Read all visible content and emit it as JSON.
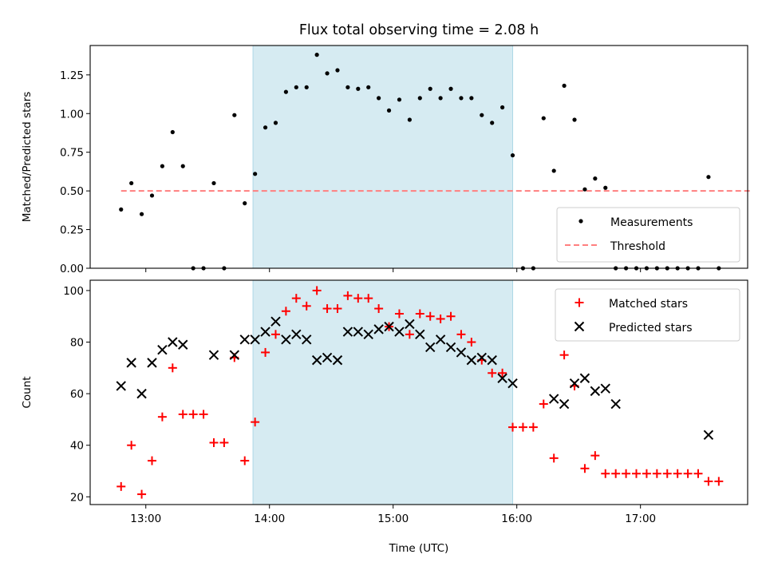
{
  "chart_data": {
    "type": "scatter",
    "title": "Flux total observing time = 2.08 h",
    "xlabel": "Time (UTC)",
    "x_ticks": [
      "13:00",
      "14:00",
      "15:00",
      "16:00",
      "17:00"
    ],
    "xlim": [
      "12:33",
      "17:52"
    ],
    "shaded_interval": [
      "13:52",
      "15:58"
    ],
    "colors": {
      "shade": "#add8e6",
      "threshold": "#ff7f7f",
      "matched": "#ff0000",
      "predicted": "#000000",
      "measurement": "#000000"
    },
    "panels": [
      {
        "ylabel": "Matched/Predicted stars",
        "ylim": [
          0,
          1.44
        ],
        "y_ticks": [
          "0.00",
          "0.25",
          "0.50",
          "0.75",
          "1.00",
          "1.25"
        ],
        "legend_position": "lower right",
        "threshold": {
          "name": "Threshold",
          "value": 0.5,
          "x": [
            "12:48",
            "17:53"
          ]
        },
        "series": [
          {
            "name": "Measurements",
            "marker": "dot",
            "x": [
              "12:48",
              "12:53",
              "12:58",
              "13:03",
              "13:08",
              "13:13",
              "13:18",
              "13:23",
              "13:28",
              "13:33",
              "13:38",
              "13:43",
              "13:48",
              "13:53",
              "13:58",
              "14:03",
              "14:08",
              "14:13",
              "14:18",
              "14:23",
              "14:28",
              "14:33",
              "14:38",
              "14:43",
              "14:48",
              "14:53",
              "14:58",
              "15:03",
              "15:08",
              "15:13",
              "15:18",
              "15:23",
              "15:28",
              "15:33",
              "15:38",
              "15:43",
              "15:48",
              "15:53",
              "15:58",
              "16:03",
              "16:08",
              "16:13",
              "16:18",
              "16:23",
              "16:28",
              "16:33",
              "16:38",
              "16:43",
              "16:48",
              "16:53",
              "16:58",
              "17:03",
              "17:08",
              "17:13",
              "17:18",
              "17:23",
              "17:28",
              "17:33",
              "17:38"
            ],
            "y": [
              0.38,
              0.55,
              0.35,
              0.47,
              0.66,
              0.88,
              0.66,
              0,
              0,
              0.55,
              0,
              0.99,
              0.42,
              0.61,
              0.91,
              0.94,
              1.14,
              1.17,
              1.17,
              1.38,
              1.26,
              1.28,
              1.17,
              1.16,
              1.17,
              1.1,
              1.02,
              1.09,
              0.96,
              1.1,
              1.16,
              1.1,
              1.16,
              1.1,
              1.1,
              0.99,
              0.94,
              1.04,
              0.73,
              0,
              0,
              0.97,
              0.63,
              1.18,
              0.96,
              0.51,
              0.58,
              0.52,
              0,
              0,
              0,
              0,
              0,
              0,
              0,
              0,
              0,
              0.59,
              0
            ]
          }
        ]
      },
      {
        "ylabel": "Count",
        "ylim": [
          17,
          104
        ],
        "y_ticks": [
          "20",
          "40",
          "60",
          "80",
          "100"
        ],
        "legend_position": "upper right",
        "series": [
          {
            "name": "Matched stars",
            "marker": "plus",
            "x": [
              "12:48",
              "12:53",
              "12:58",
              "13:03",
              "13:08",
              "13:13",
              "13:18",
              "13:23",
              "13:28",
              "13:33",
              "13:38",
              "13:43",
              "13:48",
              "13:53",
              "13:58",
              "14:03",
              "14:08",
              "14:13",
              "14:18",
              "14:23",
              "14:28",
              "14:33",
              "14:38",
              "14:43",
              "14:48",
              "14:53",
              "14:58",
              "15:03",
              "15:08",
              "15:13",
              "15:18",
              "15:23",
              "15:28",
              "15:33",
              "15:38",
              "15:43",
              "15:48",
              "15:53",
              "15:58",
              "16:03",
              "16:08",
              "16:13",
              "16:18",
              "16:23",
              "16:28",
              "16:33",
              "16:38",
              "16:43",
              "16:48",
              "16:53",
              "16:58",
              "17:03",
              "17:08",
              "17:13",
              "17:18",
              "17:23",
              "17:28",
              "17:33",
              "17:38"
            ],
            "y": [
              24,
              40,
              21,
              34,
              51,
              70,
              52,
              52,
              52,
              41,
              41,
              74,
              34,
              49,
              76,
              83,
              92,
              97,
              94,
              100,
              93,
              93,
              98,
              97,
              97,
              93,
              86,
              91,
              83,
              91,
              90,
              89,
              90,
              83,
              80,
              73,
              68,
              68,
              47,
              47,
              47,
              56,
              35,
              75,
              63,
              31,
              36,
              29,
              29,
              29,
              29,
              29,
              29,
              29,
              29,
              29,
              29,
              26,
              26
            ]
          },
          {
            "name": "Predicted stars",
            "marker": "x",
            "x": [
              "12:48",
              "12:53",
              "12:58",
              "13:03",
              "13:08",
              "13:13",
              "13:18",
              "13:33",
              "13:43",
              "13:48",
              "13:53",
              "13:58",
              "14:03",
              "14:08",
              "14:13",
              "14:18",
              "14:23",
              "14:28",
              "14:33",
              "14:38",
              "14:43",
              "14:48",
              "14:53",
              "14:58",
              "15:03",
              "15:08",
              "15:13",
              "15:18",
              "15:23",
              "15:28",
              "15:33",
              "15:38",
              "15:43",
              "15:48",
              "15:53",
              "15:58",
              "16:18",
              "16:23",
              "16:28",
              "16:33",
              "16:38",
              "16:43",
              "16:48",
              "17:33"
            ],
            "y": [
              63,
              72,
              60,
              72,
              77,
              80,
              79,
              75,
              75,
              81,
              81,
              84,
              88,
              81,
              83,
              81,
              73,
              74,
              73,
              84,
              84,
              83,
              85,
              86,
              84,
              87,
              83,
              78,
              81,
              78,
              76,
              73,
              74,
              73,
              66,
              64,
              58,
              56,
              64,
              66,
              61,
              62,
              56,
              44
            ]
          }
        ]
      }
    ]
  }
}
